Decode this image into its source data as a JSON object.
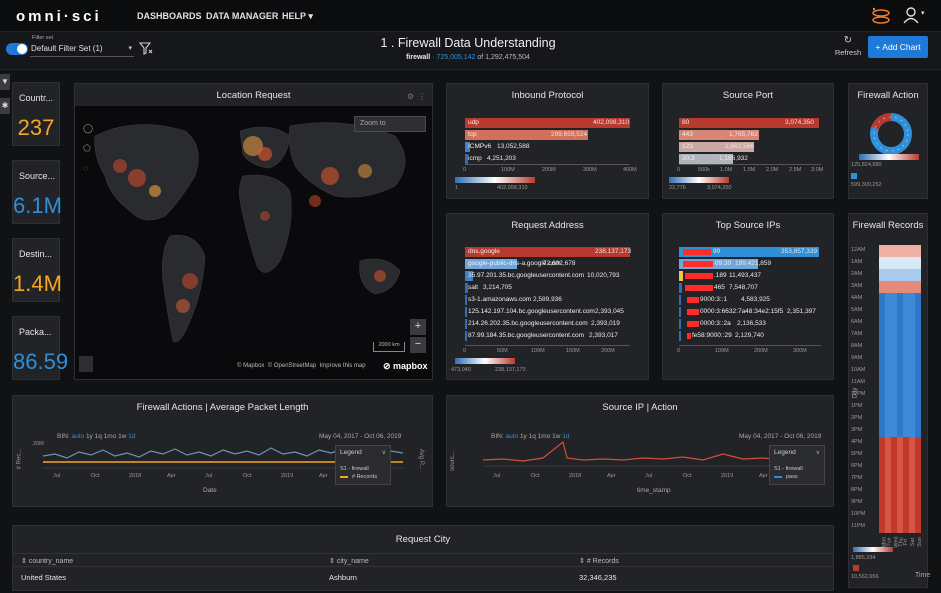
{
  "nav": {
    "logo": "omni·sci",
    "items": [
      "DASHBOARDS",
      "DATA MANAGER",
      "HELP"
    ],
    "help_caret": "▾",
    "user_caret": "▾"
  },
  "filter": {
    "caption": "Filter set",
    "value": "Default Filter Set (1)",
    "dashboard_title": "1 . Firewall Data Understanding",
    "table": "firewall",
    "filtered_count": "725,005,142",
    "total_text": "of 1,292,475,504",
    "refresh": "Refresh",
    "add_chart": "+ Add Chart"
  },
  "colors": {
    "accent": "#1e7ad6",
    "orange": "#f5a623",
    "blue": "#2f8fd8",
    "red": "#b8392e",
    "bg": "#111214",
    "panel": "#222326"
  },
  "tiles": [
    {
      "label": "Countr...",
      "value": "237"
    },
    {
      "label": "Source...",
      "value": "6.1M"
    },
    {
      "label": "Destin...",
      "value": "1.4M"
    },
    {
      "label": "Packa...",
      "value": "86.59"
    }
  ],
  "map": {
    "title": "Location Request",
    "search": "Zoom to",
    "scale": "2000 km",
    "attribution": [
      "© Mapbox",
      "© OpenStreetMap",
      "Improve this map"
    ],
    "brand": "mapbox"
  },
  "inbound": {
    "title": "Inbound Protocol",
    "rows": [
      {
        "label": "udp",
        "value": "402,098,310"
      },
      {
        "label": "tcp",
        "value": "299,659,524"
      },
      {
        "label": "ICMPv6",
        "value": "13,052,588"
      },
      {
        "label": "icmp",
        "value": "4,251,203"
      }
    ],
    "ticks": [
      "0",
      "100M",
      "200M",
      "300M",
      "400M"
    ],
    "legend_min": "1",
    "legend_max": "402,098,310"
  },
  "source_port": {
    "title": "Source Port",
    "rows": [
      {
        "label": "80",
        "value": "3,074,350"
      },
      {
        "label": "443",
        "value": "1,765,762"
      },
      {
        "label": "123",
        "value": "1,662,566"
      },
      {
        "label": "30.3",
        "value": "1,186,932"
      }
    ],
    "ticks": [
      "0",
      "500k",
      "1.0M",
      "1.5M",
      "2.0M",
      "2.5M",
      "3.0M"
    ],
    "legend_min": "22,776",
    "legend_max": "3,074,350"
  },
  "firewall_action": {
    "title": "Firewall Action",
    "legend_min": "125,824,880",
    "legend_max": "599,300,252"
  },
  "request_address": {
    "title": "Request Address",
    "rows": [
      {
        "label": "dns.google",
        "value": "238,137,173"
      },
      {
        "label": "google-public-dns-a.google.com",
        "value": "72,602,678"
      },
      {
        "label": "35.97.201.35.bc.googleusercontent.com",
        "value": "10,020,793"
      },
      {
        "label": "salt",
        "value": "3,214,705"
      },
      {
        "label": "s3-1.amazonaws.com",
        "value": "2,589,936"
      },
      {
        "label": "125.142.197.104.bc.googleusercontent.com",
        "value": "2,393,045"
      },
      {
        "label": "214.26.202.35.bc.googleusercontent.com",
        "value": "2,393,019"
      },
      {
        "label": "87.99.184.35.bc.googleusercontent.com",
        "value": "2,393,017"
      }
    ],
    "ticks": [
      "0",
      "50M",
      "100M",
      "150M",
      "200M"
    ],
    "legend_min": "473,040",
    "legend_max": "238,137,173"
  },
  "top_source": {
    "title": "Top Source IPs",
    "rows": [
      {
        "label": "90",
        "value": "353,857,339"
      },
      {
        "label": "09:30",
        "value": "199,421,859"
      },
      {
        "label": ".189",
        "value": "11,493,437"
      },
      {
        "label": "465",
        "value": "7,548,707"
      },
      {
        "label": "9000:3::1",
        "value": "4,583,925"
      },
      {
        "label": "0000:3:6632:7a48:34e2:15f5",
        "value": "2,351,397"
      },
      {
        "label": "0000:3::2a",
        "value": "2,136,533"
      },
      {
        "label": "fe58:9000::29",
        "value": "2,129,740"
      }
    ],
    "ticks": [
      "0",
      "100M",
      "200M",
      "300M"
    ]
  },
  "firewall_records": {
    "title": "Firewall Records",
    "hours": [
      "12AM",
      "1AM",
      "2AM",
      "3AM",
      "4AM",
      "5AM",
      "6AM",
      "7AM",
      "8AM",
      "9AM",
      "10AM",
      "11AM",
      "12PM",
      "1PM",
      "2PM",
      "3PM",
      "4PM",
      "5PM",
      "6PM",
      "7PM",
      "8PM",
      "9PM",
      "10PM",
      "11PM"
    ],
    "days": [
      "Mon",
      "Tue",
      "Wed",
      "Thu",
      "Fri",
      "Sat",
      "Sun"
    ],
    "ylabel": "Day",
    "xlabel": "Time",
    "legend_min": "1,885,334",
    "legend_max": "10,562,656"
  },
  "line1": {
    "title": "Firewall Actions | Average Packet Length",
    "bin_label": "BIN:",
    "bins": [
      "auto",
      "1y",
      "1q",
      "1mo",
      "1w",
      "1d"
    ],
    "range": "May 04, 2017 - Oct 06, 2019",
    "ylabel": "# Rec...",
    "ylabel2": "Avg P...",
    "ytick": "20M",
    "xticks": [
      "Jul",
      "Oct",
      "2018",
      "Apr",
      "Jul",
      "Oct",
      "2019",
      "Apr"
    ],
    "xlabel": "Date",
    "legend_title": "Legend",
    "legend_items": [
      "S1 - firewall",
      "# Records"
    ]
  },
  "line2": {
    "title": "Source IP | Action",
    "bin_label": "BIN:",
    "bins": [
      "auto",
      "1y",
      "1q",
      "1mo",
      "1w",
      "1d"
    ],
    "range": "May 04, 2017 - Oct 06, 2019",
    "ylabel": "sourc...",
    "xticks": [
      "Jul",
      "Oct",
      "2018",
      "Apr",
      "Jul",
      "Oct",
      "2019",
      "Apr"
    ],
    "xlabel": "time_stamp",
    "legend_title": "Legend",
    "legend_items": [
      "S1 - firewall",
      "pass"
    ]
  },
  "table": {
    "title": "Request City",
    "columns": [
      "country_name",
      "city_name",
      "# Records"
    ],
    "rows": [
      [
        "United States",
        "Ashburn",
        "32,346,235"
      ]
    ]
  }
}
